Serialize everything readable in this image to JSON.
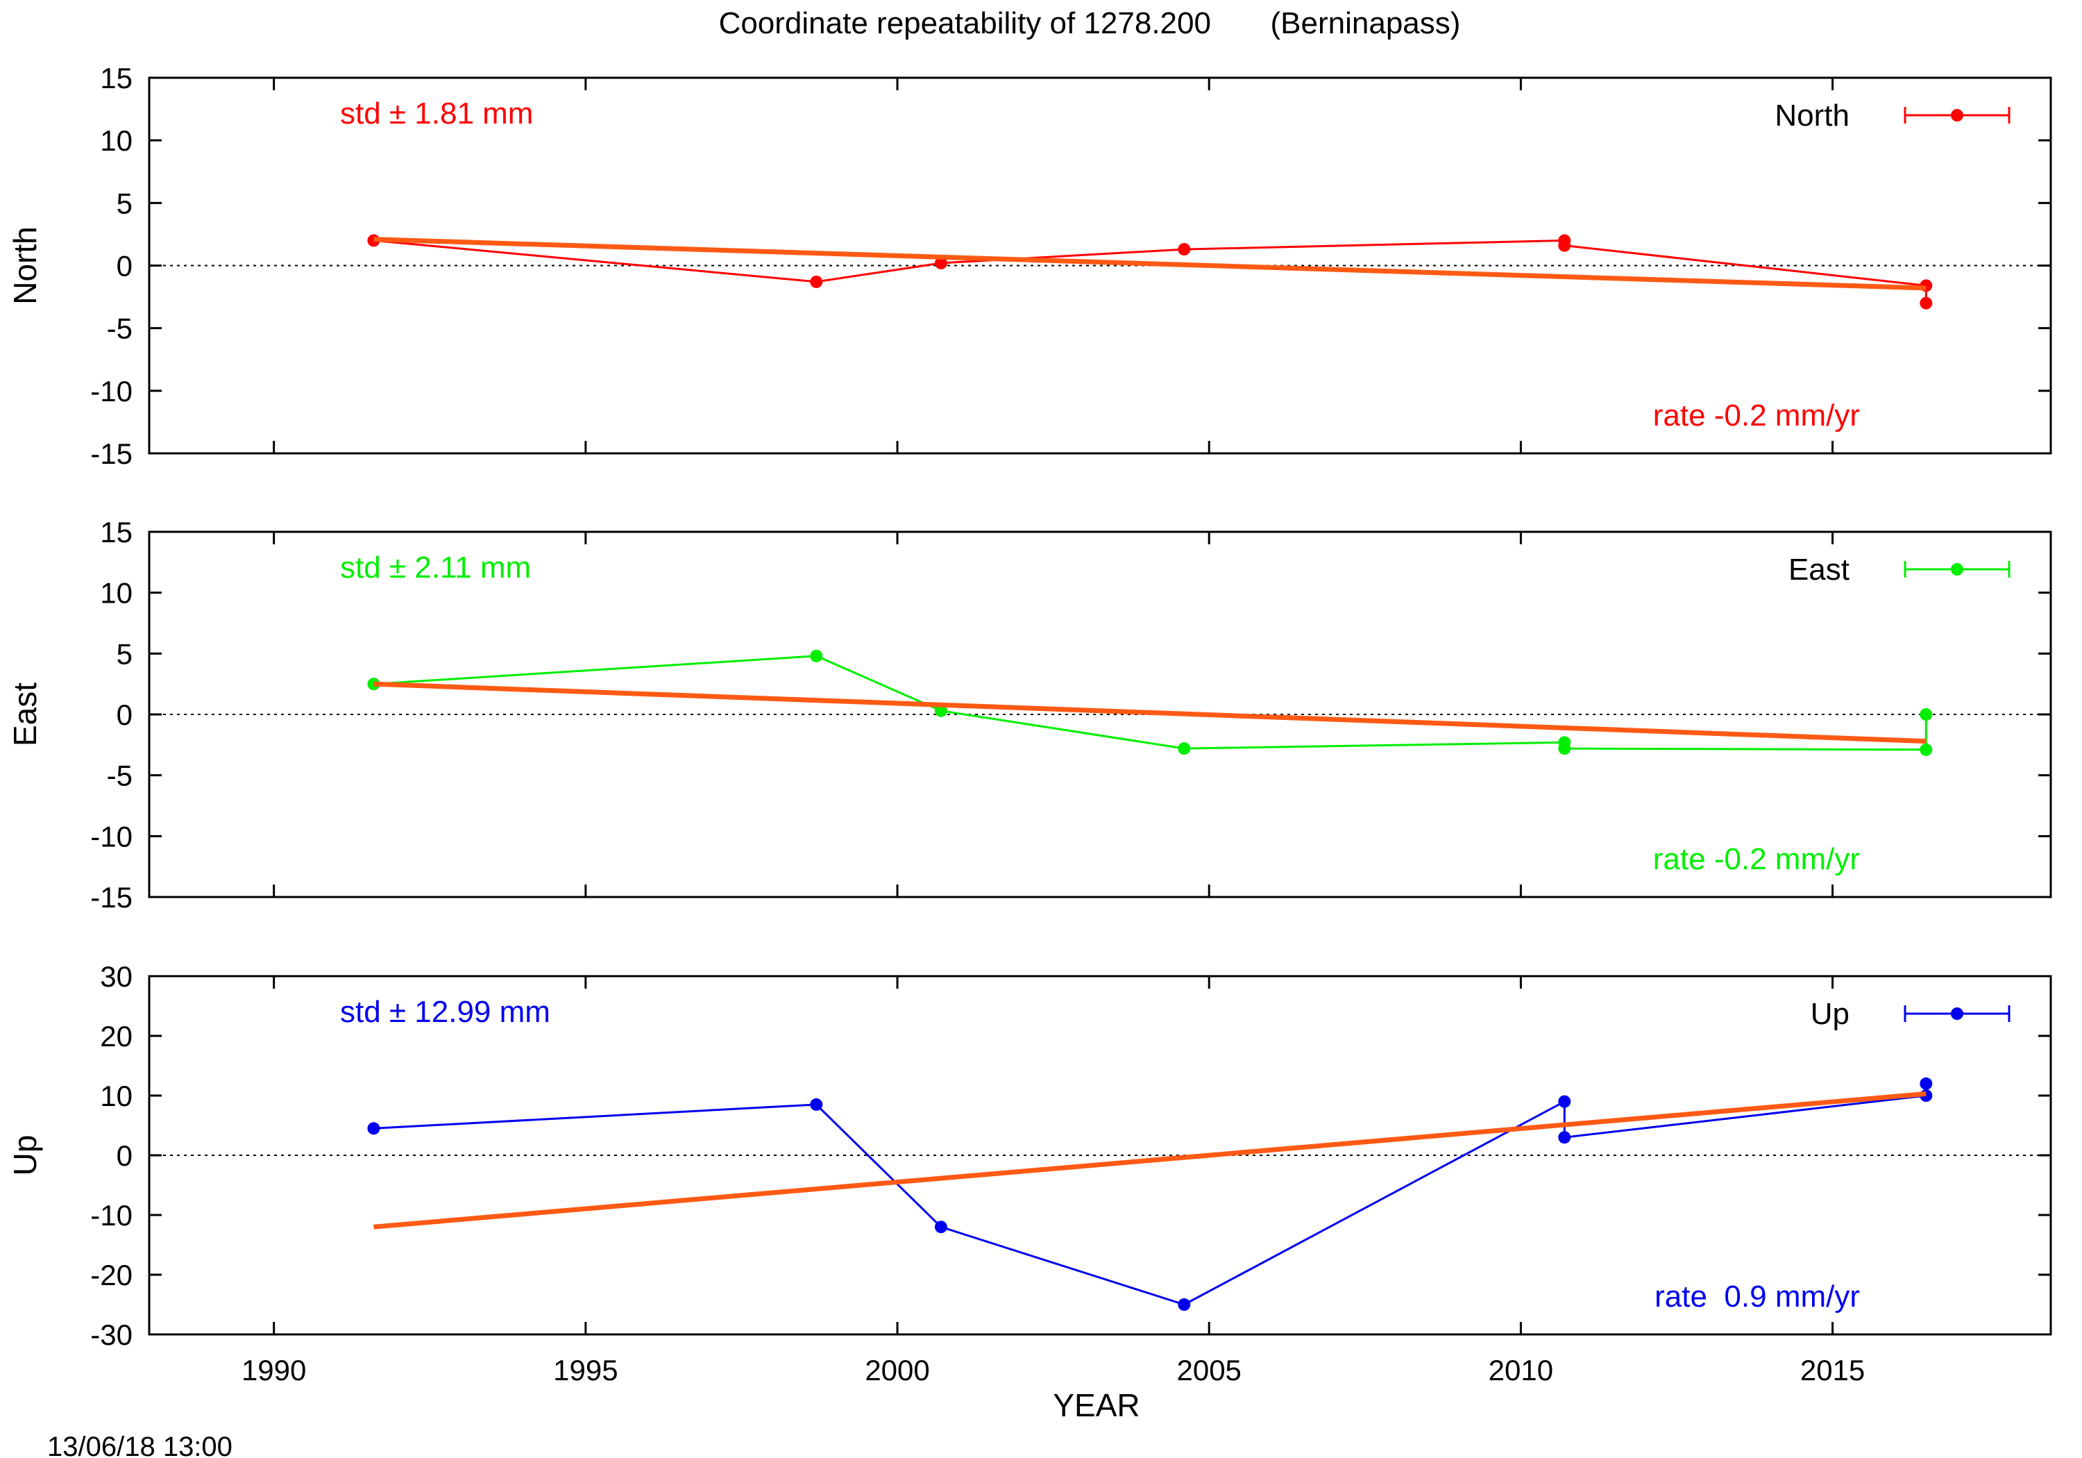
{
  "figure": {
    "title": "Coordinate repeatability of 1278.200       (Berninapass)",
    "xlabel": "YEAR",
    "timestamp": "13/06/18 13:00",
    "x_ticks": [
      "1990",
      "1995",
      "2000",
      "2005",
      "2010",
      "2015"
    ]
  },
  "chart_data": [
    {
      "type": "line",
      "ylabel": "North",
      "color": "#ff0000",
      "fit_color": "#ff5a14",
      "xlim": [
        1988,
        2018.5
      ],
      "ylim": [
        -15,
        15
      ],
      "y_ticks": [
        "15",
        "10",
        "5",
        "0",
        "-5",
        "-10",
        "-15"
      ],
      "legend": "North",
      "legend_position": "top-right",
      "std_label": "std ± 1.81 mm",
      "rate_label": "rate -0.2 mm/yr",
      "zero_line": true,
      "series": [
        {
          "name": "North",
          "x": [
            1991.6,
            1998.7,
            2000.7,
            2004.6,
            2010.7,
            2010.7,
            2016.5,
            2016.5
          ],
          "y": [
            2.0,
            -1.3,
            0.2,
            1.3,
            2.0,
            1.6,
            -1.6,
            -3.0
          ]
        }
      ],
      "fit": {
        "x": [
          1991.6,
          2016.5
        ],
        "y": [
          2.1,
          -1.8
        ]
      }
    },
    {
      "type": "line",
      "ylabel": "East",
      "color": "#00ee00",
      "fit_color": "#ff5a14",
      "xlim": [
        1988,
        2018.5
      ],
      "ylim": [
        -15,
        15
      ],
      "y_ticks": [
        "15",
        "10",
        "5",
        "0",
        "-5",
        "-10",
        "-15"
      ],
      "legend": "East",
      "legend_position": "top-right",
      "std_label": "std ± 2.11 mm",
      "rate_label": "rate -0.2 mm/yr",
      "zero_line": true,
      "series": [
        {
          "name": "East",
          "x": [
            1991.6,
            1998.7,
            2000.7,
            2004.6,
            2010.7,
            2010.7,
            2016.5,
            2016.5
          ],
          "y": [
            2.5,
            4.8,
            0.3,
            -2.8,
            -2.3,
            -2.8,
            -2.9,
            0.0
          ]
        }
      ],
      "fit": {
        "x": [
          1991.6,
          2016.5
        ],
        "y": [
          2.5,
          -2.2
        ]
      }
    },
    {
      "type": "line",
      "ylabel": "Up",
      "color": "#0000ee",
      "fit_color": "#ff5a14",
      "xlim": [
        1988,
        2018.5
      ],
      "ylim": [
        -30,
        30
      ],
      "y_ticks": [
        "30",
        "20",
        "10",
        "0",
        "-10",
        "-20",
        "-30"
      ],
      "legend": "Up",
      "legend_position": "top-right",
      "std_label": "std ± 12.99 mm",
      "rate_label": "rate  0.9 mm/yr",
      "zero_line": true,
      "series": [
        {
          "name": "Up",
          "x": [
            1991.6,
            1998.7,
            2000.7,
            2004.6,
            2010.7,
            2010.7,
            2016.5,
            2016.5
          ],
          "y": [
            4.5,
            8.5,
            -12.0,
            -25.0,
            9.0,
            3.0,
            10.0,
            12.0
          ]
        }
      ],
      "fit": {
        "x": [
          1991.6,
          2016.5
        ],
        "y": [
          -12.0,
          10.3
        ]
      }
    }
  ]
}
